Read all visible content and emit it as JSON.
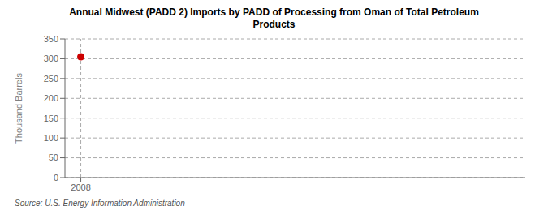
{
  "chart_data": {
    "type": "scatter",
    "title": "Annual Midwest (PADD 2) Imports by PADD of Processing from Oman of Total Petroleum\nProducts",
    "y_label": "Thousand Barrels",
    "source": "Source: U.S. Energy Information Administration",
    "x": [
      2008
    ],
    "values": [
      305
    ],
    "color": "#cc0000",
    "marker": "o",
    "xlim": [
      2007.5,
      2022
    ],
    "xticks": [
      2008
    ],
    "ylim": [
      0,
      350
    ],
    "yticks": [
      0,
      50,
      100,
      150,
      200,
      250,
      300,
      350
    ],
    "grid": true
  }
}
